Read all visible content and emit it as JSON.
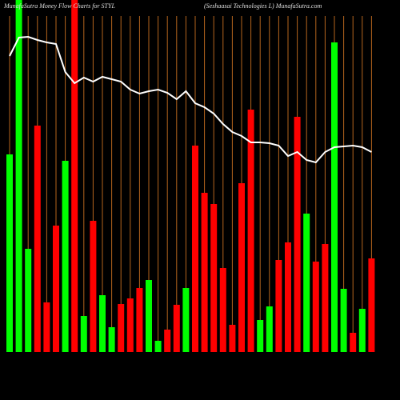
{
  "chart_data": {
    "type": "bar",
    "title": "MunafaSutra  Money  Flow  Charts for STYL",
    "subtitle": "(Seshaasai   Technologies L) MunafaSutra.com",
    "categories": [
      null,
      null,
      null,
      null,
      null,
      null,
      null,
      null,
      null,
      null,
      null,
      null,
      null,
      null,
      null,
      null,
      null,
      null,
      null,
      null,
      null,
      null,
      null,
      null,
      null,
      null,
      null,
      null,
      null,
      null,
      null,
      null,
      null,
      null,
      null,
      null,
      null,
      null,
      null,
      null
    ],
    "ylim": [
      0,
      440
    ],
    "guide_color": "#b5651d",
    "series": [
      {
        "type": "bar",
        "values": [
          247,
          440,
          129,
          283,
          62,
          158,
          239,
          440,
          45,
          164,
          71,
          31,
          60,
          67,
          80,
          90,
          14,
          28,
          59,
          80,
          258,
          199,
          185,
          105,
          34,
          211,
          303,
          40,
          57,
          115,
          137,
          294,
          173,
          113,
          135,
          387,
          79,
          24,
          54,
          117
        ],
        "colors": [
          "#00ff00",
          "#00ff00",
          "#00ff00",
          "#ff0000",
          "#ff0000",
          "#ff0000",
          "#00ff00",
          "#ff0000",
          "#00ff00",
          "#ff0000",
          "#00ff00",
          "#00ff00",
          "#ff0000",
          "#ff0000",
          "#ff0000",
          "#00ff00",
          "#00ff00",
          "#ff0000",
          "#ff0000",
          "#00ff00",
          "#ff0000",
          "#ff0000",
          "#ff0000",
          "#ff0000",
          "#ff0000",
          "#ff0000",
          "#ff0000",
          "#00ff00",
          "#00ff00",
          "#ff0000",
          "#ff0000",
          "#ff0000",
          "#00ff00",
          "#ff0000",
          "#ff0000",
          "#00ff00",
          "#00ff00",
          "#ff0000",
          "#00ff00",
          "#ff0000"
        ]
      },
      {
        "type": "line",
        "color": "#ffffff",
        "values": [
          370,
          393,
          394,
          390,
          387,
          385,
          350,
          336,
          343,
          338,
          344,
          341,
          338,
          328,
          323,
          326,
          328,
          324,
          316,
          326,
          311,
          306,
          298,
          285,
          275,
          270,
          262,
          262,
          261,
          258,
          245,
          250,
          240,
          237,
          250,
          256,
          257,
          258,
          256,
          250
        ]
      }
    ]
  }
}
